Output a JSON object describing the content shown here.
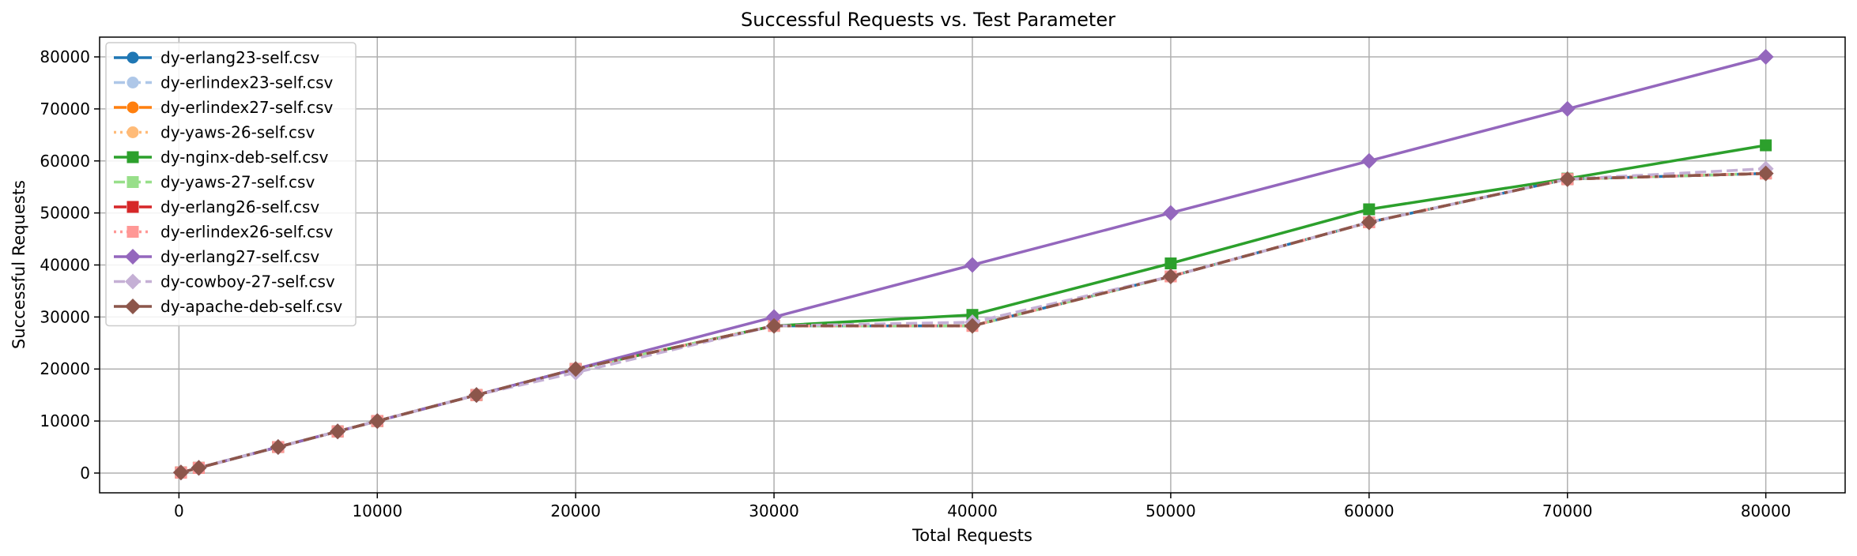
{
  "chart_data": {
    "type": "line",
    "title": "Successful Requests vs. Test Parameter",
    "xlabel": "Total Requests",
    "ylabel": "Successful Requests",
    "xlim": [
      -4000,
      84000
    ],
    "ylim": [
      -3800,
      83800
    ],
    "xticks": [
      0,
      10000,
      20000,
      30000,
      40000,
      50000,
      60000,
      70000,
      80000
    ],
    "yticks": [
      0,
      10000,
      20000,
      30000,
      40000,
      50000,
      60000,
      70000,
      80000
    ],
    "grid": true,
    "legend_position": "upper-left",
    "x": [
      100,
      1000,
      5000,
      8000,
      10000,
      15000,
      20000,
      30000,
      40000,
      50000,
      60000,
      70000,
      80000
    ],
    "series": [
      {
        "name": "dy-erlang23-self.csv",
        "color": "#1f77b4",
        "marker": "circle",
        "dash": "solid",
        "values": [
          100,
          1000,
          5000,
          8000,
          10000,
          15000,
          20000,
          28300,
          28300,
          37800,
          48200,
          56500,
          57600
        ]
      },
      {
        "name": "dy-erlindex23-self.csv",
        "color": "#aec7e8",
        "marker": "circle",
        "dash": "dash",
        "values": [
          100,
          1000,
          5000,
          8000,
          10000,
          15000,
          20000,
          28300,
          28400,
          37800,
          48200,
          56500,
          57600
        ]
      },
      {
        "name": "dy-erlindex27-self.csv",
        "color": "#ff7f0e",
        "marker": "circle",
        "dash": "dashdot",
        "values": [
          100,
          1000,
          5000,
          8000,
          10000,
          15000,
          20000,
          28300,
          28300,
          37800,
          48200,
          56500,
          57600
        ]
      },
      {
        "name": "dy-yaws-26-self.csv",
        "color": "#ffbb78",
        "marker": "circle",
        "dash": "dot",
        "values": [
          100,
          1000,
          5000,
          8000,
          10000,
          15000,
          20000,
          28300,
          28300,
          37800,
          48200,
          56500,
          57600
        ]
      },
      {
        "name": "dy-nginx-deb-self.csv",
        "color": "#2ca02c",
        "marker": "square",
        "dash": "solid",
        "values": [
          100,
          1000,
          5000,
          8000,
          10000,
          15000,
          20000,
          28300,
          30400,
          40300,
          50700,
          56600,
          63000
        ]
      },
      {
        "name": "dy-yaws-27-self.csv",
        "color": "#98df8a",
        "marker": "square",
        "dash": "dash",
        "values": [
          100,
          1000,
          5000,
          8000,
          10000,
          15000,
          20000,
          28300,
          28300,
          37800,
          48200,
          56500,
          57600
        ]
      },
      {
        "name": "dy-erlang26-self.csv",
        "color": "#d62728",
        "marker": "square",
        "dash": "dashdot",
        "values": [
          100,
          1000,
          5000,
          8000,
          10000,
          15000,
          20000,
          28300,
          28300,
          37800,
          48200,
          56500,
          57600
        ]
      },
      {
        "name": "dy-erlindex26-self.csv",
        "color": "#ff9896",
        "marker": "square",
        "dash": "dot",
        "values": [
          100,
          1000,
          5000,
          8000,
          10000,
          15000,
          20000,
          28300,
          28300,
          37800,
          48200,
          56500,
          57600
        ]
      },
      {
        "name": "dy-erlang27-self.csv",
        "color": "#9467bd",
        "marker": "diamond",
        "dash": "solid",
        "values": [
          100,
          1000,
          5000,
          8000,
          10000,
          15000,
          20000,
          30000,
          40000,
          50000,
          60000,
          70000,
          80000
        ]
      },
      {
        "name": "dy-cowboy-27-self.csv",
        "color": "#c5b0d5",
        "marker": "diamond",
        "dash": "dash",
        "values": [
          100,
          1000,
          5000,
          8000,
          10000,
          15000,
          19300,
          28300,
          29000,
          37800,
          48200,
          56500,
          58500
        ]
      },
      {
        "name": "dy-apache-deb-self.csv",
        "color": "#8c564b",
        "marker": "diamond",
        "dash": "dashdot",
        "values": [
          100,
          1000,
          5000,
          8000,
          10000,
          15000,
          20000,
          28300,
          28300,
          37800,
          48200,
          56500,
          57600
        ]
      }
    ]
  }
}
